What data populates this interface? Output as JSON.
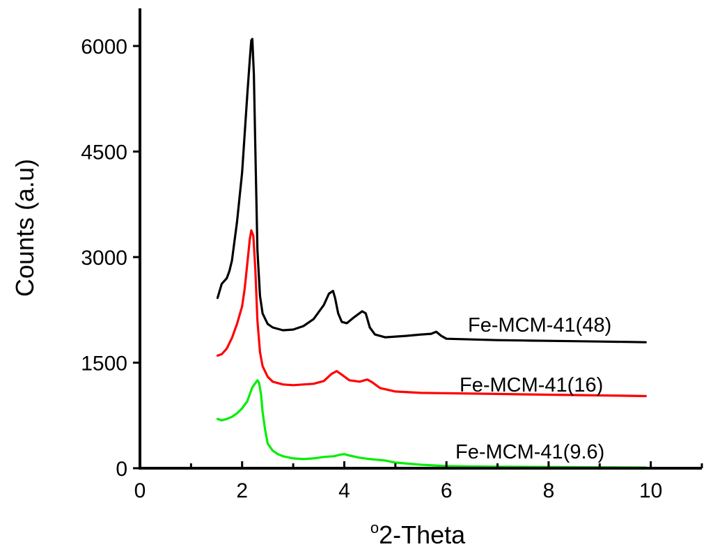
{
  "chart_data": {
    "type": "line",
    "title": "",
    "xlabel_superscript": "o",
    "xlabel": "2-Theta",
    "ylabel": "Counts (a.u)",
    "xlim": [
      0,
      11
    ],
    "ylim": [
      0,
      6000
    ],
    "x_ticks": [
      0,
      2,
      4,
      6,
      8,
      10
    ],
    "x_tick_labels": [
      "0",
      "2",
      "4",
      "6",
      "8",
      "10"
    ],
    "x_minor_ticks": [
      1,
      3,
      5,
      7,
      9,
      11
    ],
    "y_ticks": [
      0,
      1500,
      3000,
      4500,
      6000
    ],
    "y_tick_labels": [
      "0",
      "1500",
      "3000",
      "4500",
      "6000"
    ],
    "grid": false,
    "legend": "inline labels at right end of each curve",
    "series": [
      {
        "name": "Fe-MCM-41(48)",
        "color": "#000000",
        "x": [
          1.52,
          1.6,
          1.65,
          1.7,
          1.75,
          1.8,
          1.9,
          2.0,
          2.05,
          2.1,
          2.15,
          2.18,
          2.2,
          2.23,
          2.26,
          2.3,
          2.35,
          2.4,
          2.5,
          2.6,
          2.8,
          3.0,
          3.2,
          3.4,
          3.6,
          3.7,
          3.78,
          3.82,
          3.88,
          3.95,
          4.05,
          4.2,
          4.35,
          4.42,
          4.5,
          4.6,
          4.8,
          5.0,
          5.2,
          5.5,
          5.7,
          5.8,
          5.9,
          6.0,
          6.5,
          7.0,
          7.5,
          8.0,
          8.5,
          9.0,
          9.5,
          9.9
        ],
        "y": [
          2420,
          2620,
          2660,
          2700,
          2800,
          2950,
          3500,
          4200,
          4750,
          5300,
          5800,
          6080,
          6100,
          5600,
          4500,
          3100,
          2450,
          2200,
          2050,
          2000,
          1960,
          1970,
          2020,
          2120,
          2320,
          2480,
          2520,
          2420,
          2200,
          2080,
          2060,
          2150,
          2230,
          2200,
          2000,
          1900,
          1860,
          1870,
          1880,
          1900,
          1910,
          1940,
          1880,
          1840,
          1830,
          1820,
          1815,
          1810,
          1805,
          1800,
          1795,
          1790
        ]
      },
      {
        "name": "Fe-MCM-41(16)",
        "color": "#ff0000",
        "x": [
          1.52,
          1.6,
          1.7,
          1.8,
          1.9,
          2.0,
          2.05,
          2.1,
          2.15,
          2.18,
          2.22,
          2.26,
          2.3,
          2.35,
          2.4,
          2.5,
          2.6,
          2.8,
          3.0,
          3.2,
          3.4,
          3.6,
          3.75,
          3.85,
          3.95,
          4.1,
          4.3,
          4.45,
          4.55,
          4.7,
          5.0,
          5.5,
          6.0,
          6.5,
          7.0,
          7.5,
          8.0,
          8.5,
          9.0,
          9.5,
          9.9
        ],
        "y": [
          1600,
          1620,
          1700,
          1850,
          2050,
          2300,
          2550,
          2900,
          3250,
          3380,
          3300,
          2800,
          2100,
          1650,
          1450,
          1300,
          1230,
          1190,
          1180,
          1190,
          1200,
          1240,
          1340,
          1380,
          1330,
          1250,
          1230,
          1260,
          1220,
          1140,
          1090,
          1070,
          1065,
          1060,
          1055,
          1050,
          1045,
          1040,
          1035,
          1030,
          1025
        ]
      },
      {
        "name": "Fe-MCM-41(9.6)",
        "color": "#00ee00",
        "x": [
          1.52,
          1.6,
          1.7,
          1.8,
          1.9,
          2.0,
          2.1,
          2.15,
          2.2,
          2.25,
          2.3,
          2.33,
          2.37,
          2.4,
          2.45,
          2.5,
          2.6,
          2.7,
          2.8,
          3.0,
          3.2,
          3.4,
          3.6,
          3.8,
          3.9,
          4.0,
          4.1,
          4.3,
          4.5,
          4.8,
          5.0,
          5.5,
          6.0,
          6.5,
          7.0,
          7.5,
          8.0,
          8.5,
          9.0,
          9.5,
          9.9
        ],
        "y": [
          700,
          680,
          700,
          730,
          780,
          850,
          950,
          1050,
          1150,
          1200,
          1250,
          1220,
          1050,
          800,
          550,
          350,
          250,
          200,
          170,
          140,
          130,
          140,
          160,
          170,
          190,
          200,
          180,
          150,
          130,
          110,
          80,
          50,
          30,
          25,
          22,
          20,
          18,
          15,
          13,
          12,
          10
        ]
      }
    ]
  }
}
